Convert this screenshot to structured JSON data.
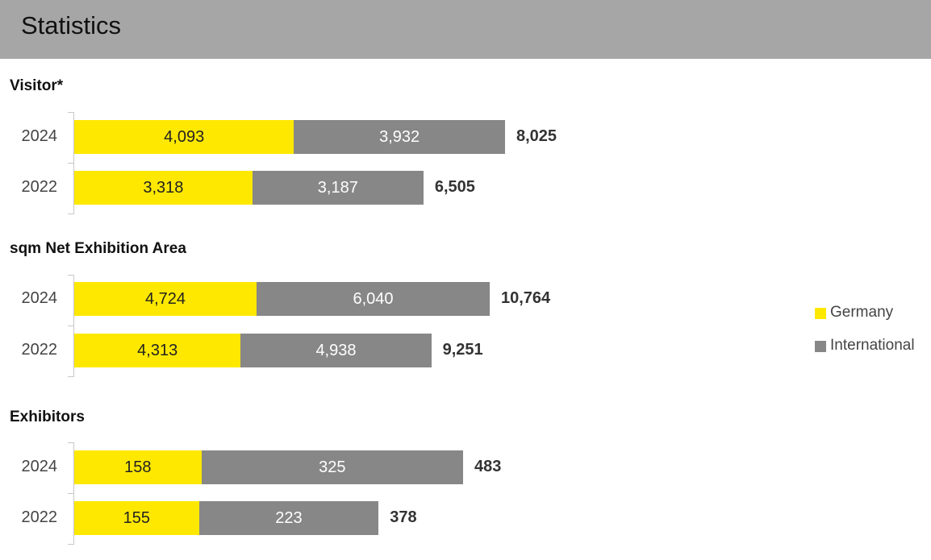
{
  "header": {
    "title": "Statistics"
  },
  "colors": {
    "germany": "#ffe800",
    "international": "#878787",
    "header_bg": "#a6a6a6"
  },
  "legend": [
    {
      "label": "Germany",
      "color": "#ffe800"
    },
    {
      "label": "International",
      "color": "#878787"
    }
  ],
  "chart_data": [
    {
      "type": "bar",
      "orientation": "horizontal",
      "stacked": true,
      "title": "Visitor*",
      "categories": [
        "2024",
        "2022"
      ],
      "series": [
        {
          "name": "Germany",
          "values": [
            4093,
            3318
          ],
          "labels": [
            "4,093",
            "3,318"
          ]
        },
        {
          "name": "International",
          "values": [
            3932,
            3187
          ],
          "labels": [
            "3,932",
            "3,187"
          ]
        }
      ],
      "totals": [
        8025,
        6505
      ],
      "total_labels": [
        "8,025",
        "6,505"
      ]
    },
    {
      "type": "bar",
      "orientation": "horizontal",
      "stacked": true,
      "title": "sqm Net Exhibition Area",
      "categories": [
        "2024",
        "2022"
      ],
      "series": [
        {
          "name": "Germany",
          "values": [
            4724,
            4313
          ],
          "labels": [
            "4,724",
            "4,313"
          ]
        },
        {
          "name": "International",
          "values": [
            6040,
            4938
          ],
          "labels": [
            "6,040",
            "4,938"
          ]
        }
      ],
      "totals": [
        10764,
        9251
      ],
      "total_labels": [
        "10,764",
        "9,251"
      ]
    },
    {
      "type": "bar",
      "orientation": "horizontal",
      "stacked": true,
      "title": "Exhibitors",
      "categories": [
        "2024",
        "2022"
      ],
      "series": [
        {
          "name": "Germany",
          "values": [
            158,
            155
          ],
          "labels": [
            "158",
            "155"
          ]
        },
        {
          "name": "International",
          "values": [
            325,
            223
          ],
          "labels": [
            "325",
            "223"
          ]
        }
      ],
      "totals": [
        483,
        378
      ],
      "total_labels": [
        "483",
        "378"
      ]
    }
  ]
}
